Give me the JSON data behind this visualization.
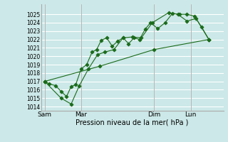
{
  "title": "",
  "xlabel": "Pression niveau de la mer( hPa )",
  "bg_color": "#cce8e8",
  "grid_color": "#ffffff",
  "line_color": "#1a6b1a",
  "ylim": [
    1013.5,
    1026.2
  ],
  "yticks": [
    1014,
    1015,
    1016,
    1017,
    1018,
    1019,
    1020,
    1021,
    1022,
    1023,
    1024,
    1025
  ],
  "day_labels": [
    "Sam",
    "Mar",
    "Dim",
    "Lun"
  ],
  "day_positions": [
    0.0,
    2.0,
    6.0,
    8.0
  ],
  "xlim": [
    -0.2,
    9.8
  ],
  "series": [
    [
      0.0,
      1017.0,
      0.25,
      1016.7,
      0.6,
      1016.5,
      0.9,
      1015.8,
      1.2,
      1015.2,
      1.45,
      1016.4,
      1.7,
      1016.6,
      2.0,
      1018.5,
      2.3,
      1019.0,
      2.6,
      1020.5,
      2.85,
      1020.8,
      3.1,
      1021.9,
      3.4,
      1022.2,
      3.7,
      1021.2,
      4.0,
      1021.8,
      4.3,
      1022.2,
      4.6,
      1021.5,
      4.9,
      1022.2,
      5.2,
      1022.0,
      5.5,
      1023.2,
      5.8,
      1024.0,
      6.2,
      1023.3,
      6.6,
      1024.0,
      7.0,
      1025.1,
      7.4,
      1025.0,
      7.8,
      1025.0,
      8.2,
      1024.8,
      8.6,
      1023.5,
      9.0,
      1022.0
    ],
    [
      0.0,
      1017.0,
      3.0,
      1018.8,
      6.0,
      1020.8,
      9.0,
      1022.0
    ],
    [
      0.0,
      1017.0,
      0.9,
      1015.0,
      1.45,
      1014.3,
      1.9,
      1016.5,
      2.4,
      1018.5,
      2.9,
      1020.2,
      3.3,
      1020.5,
      3.8,
      1020.8,
      4.3,
      1022.2,
      4.8,
      1022.3,
      5.3,
      1022.2,
      5.9,
      1024.0,
      6.8,
      1025.2,
      7.3,
      1025.0,
      7.8,
      1024.2,
      8.3,
      1024.5,
      9.0,
      1022.0
    ]
  ]
}
